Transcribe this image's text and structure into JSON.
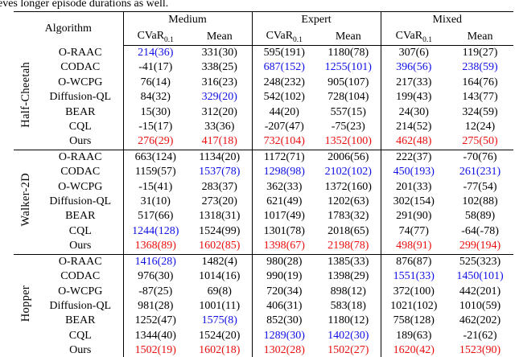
{
  "page": {
    "top_text": "eves longer episode durations as well."
  },
  "colors": {
    "black": "#000000",
    "blue": "#0f0fe6",
    "red": "#ea0e0e"
  },
  "table": {
    "header": {
      "algorithm_label": "Algorithm",
      "groups": [
        {
          "label": "Medium"
        },
        {
          "label": "Expert"
        },
        {
          "label": "Mixed"
        }
      ],
      "cvar_base": "CVaR",
      "cvar_sub": "0.1",
      "mean_label": "Mean"
    },
    "sections": [
      {
        "env": "Half-Cheetah",
        "rows": [
          {
            "algorithm": "O-RAAC",
            "values": [
              "214(36)",
              "331(30)",
              "595(191)",
              "1180(78)",
              "307(6)",
              "119(27)"
            ],
            "colors": [
              "blue",
              "black",
              "black",
              "black",
              "black",
              "black"
            ]
          },
          {
            "algorithm": "CODAC",
            "values": [
              "-41(17)",
              "338(25)",
              "687(152)",
              "1255(101)",
              "396(56)",
              "238(59)"
            ],
            "colors": [
              "black",
              "black",
              "blue",
              "blue",
              "blue",
              "blue"
            ]
          },
          {
            "algorithm": "O-WCPG",
            "values": [
              "76(14)",
              "316(23)",
              "248(232)",
              "905(107)",
              "217(33)",
              "164(76)"
            ],
            "colors": [
              "black",
              "black",
              "black",
              "black",
              "black",
              "black"
            ]
          },
          {
            "algorithm": "Diffusion-QL",
            "values": [
              "84(32)",
              "329(20)",
              "542(102)",
              "728(104)",
              "199(43)",
              "143(77)"
            ],
            "colors": [
              "black",
              "blue",
              "black",
              "black",
              "black",
              "black"
            ]
          },
          {
            "algorithm": "BEAR",
            "values": [
              "15(30)",
              "312(20)",
              "44(20)",
              "557(15)",
              "24(30)",
              "324(59)"
            ],
            "colors": [
              "black",
              "black",
              "black",
              "black",
              "black",
              "black"
            ]
          },
          {
            "algorithm": "CQL",
            "values": [
              "-15(17)",
              "33(36)",
              "-207(47)",
              "-75(23)",
              "214(52)",
              "12(24)"
            ],
            "colors": [
              "black",
              "black",
              "black",
              "black",
              "black",
              "black"
            ]
          },
          {
            "algorithm": "Ours",
            "values": [
              "276(29)",
              "417(18)",
              "732(104)",
              "1352(100)",
              "462(48)",
              "275(50)"
            ],
            "colors": [
              "red",
              "red",
              "red",
              "red",
              "red",
              "red"
            ]
          }
        ]
      },
      {
        "env": "Walker-2D",
        "rows": [
          {
            "algorithm": "O-RAAC",
            "values": [
              "663(124)",
              "1134(20)",
              "1172(71)",
              "2006(56)",
              "222(37)",
              "-70(76)"
            ],
            "colors": [
              "black",
              "black",
              "black",
              "black",
              "black",
              "black"
            ]
          },
          {
            "algorithm": "CODAC",
            "values": [
              "1159(57)",
              "1537(78)",
              "1298(98)",
              "2102(102)",
              "450(193)",
              "261(231)"
            ],
            "colors": [
              "black",
              "blue",
              "blue",
              "blue",
              "blue",
              "blue"
            ]
          },
          {
            "algorithm": "O-WCPG",
            "values": [
              "-15(41)",
              "283(37)",
              "362(33)",
              "1372(160)",
              "201(33)",
              "-77(54)"
            ],
            "colors": [
              "black",
              "black",
              "black",
              "black",
              "black",
              "black"
            ]
          },
          {
            "algorithm": "Diffusion-QL",
            "values": [
              "31(10)",
              "273(20)",
              "621(49)",
              "1202(63)",
              "302(154)",
              "102(88)"
            ],
            "colors": [
              "black",
              "black",
              "black",
              "black",
              "black",
              "black"
            ]
          },
          {
            "algorithm": "BEAR",
            "values": [
              "517(66)",
              "1318(31)",
              "1017(49)",
              "1783(32)",
              "291(90)",
              "58(89)"
            ],
            "colors": [
              "black",
              "black",
              "black",
              "black",
              "black",
              "black"
            ]
          },
          {
            "algorithm": "CQL",
            "values": [
              "1244(128)",
              "1524(99)",
              "1301(78)",
              "2018(65)",
              "74(77)",
              "-64(-78)"
            ],
            "colors": [
              "blue",
              "black",
              "black",
              "black",
              "black",
              "black"
            ]
          },
          {
            "algorithm": "Ours",
            "values": [
              "1368(89)",
              "1602(85)",
              "1398(67)",
              "2198(78)",
              "498(91)",
              "299(194)"
            ],
            "colors": [
              "red",
              "red",
              "red",
              "red",
              "red",
              "red"
            ]
          }
        ]
      },
      {
        "env": "Hopper",
        "rows": [
          {
            "algorithm": "O-RAAC",
            "values": [
              "1416(28)",
              "1482(4)",
              "980(28)",
              "1385(33)",
              "876(87)",
              "525(323)"
            ],
            "colors": [
              "blue",
              "black",
              "black",
              "black",
              "black",
              "black"
            ]
          },
          {
            "algorithm": "CODAC",
            "values": [
              "976(30)",
              "1014(16)",
              "990(19)",
              "1398(29)",
              "1551(33)",
              "1450(101)"
            ],
            "colors": [
              "black",
              "black",
              "black",
              "black",
              "blue",
              "blue"
            ]
          },
          {
            "algorithm": "O-WCPG",
            "values": [
              "-87(25)",
              "69(8)",
              "720(34)",
              "898(12)",
              "372(100)",
              "442(201)"
            ],
            "colors": [
              "black",
              "black",
              "black",
              "black",
              "black",
              "black"
            ]
          },
          {
            "algorithm": "Diffusion-QL",
            "values": [
              "981(28)",
              "1001(11)",
              "406(31)",
              "583(18)",
              "1021(102)",
              "1010(59)"
            ],
            "colors": [
              "black",
              "black",
              "black",
              "black",
              "black",
              "black"
            ]
          },
          {
            "algorithm": "BEAR",
            "values": [
              "1252(47)",
              "1575(8)",
              "852(30)",
              "1180(12)",
              "758(128)",
              "462(202)"
            ],
            "colors": [
              "black",
              "blue",
              "black",
              "black",
              "black",
              "black"
            ]
          },
          {
            "algorithm": "CQL",
            "values": [
              "1344(40)",
              "1524(20)",
              "1289(30)",
              "1402(30)",
              "189(63)",
              "-21(62)"
            ],
            "colors": [
              "black",
              "black",
              "blue",
              "blue",
              "black",
              "black"
            ]
          },
          {
            "algorithm": "Ours",
            "values": [
              "1502(19)",
              "1602(18)",
              "1302(28)",
              "1502(27)",
              "1620(42)",
              "1523(90)"
            ],
            "colors": [
              "red",
              "red",
              "red",
              "red",
              "red",
              "red"
            ]
          }
        ]
      }
    ]
  }
}
